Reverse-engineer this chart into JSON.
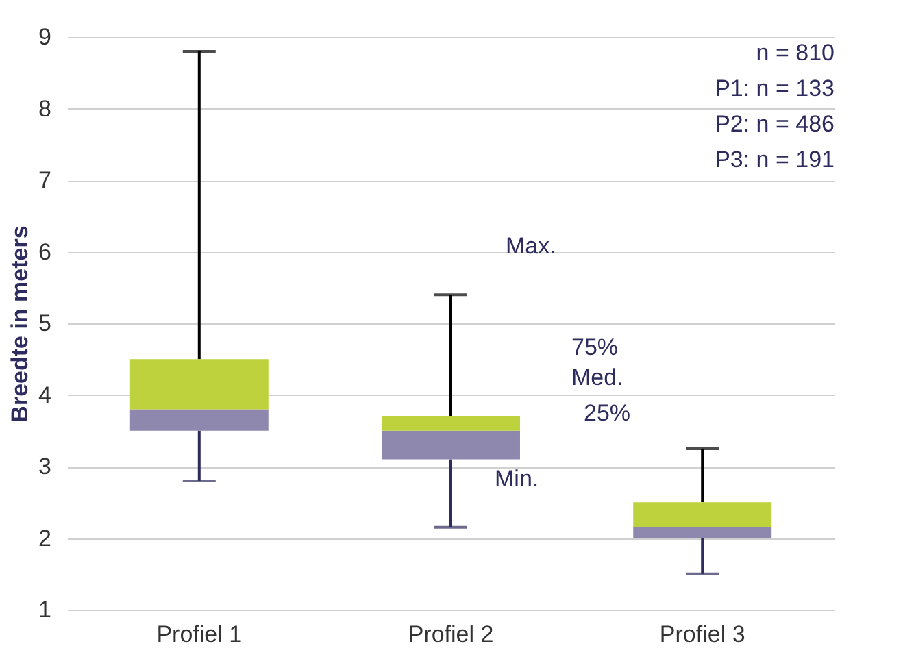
{
  "chart_data": {
    "type": "box",
    "ylabel": "Breedte in meters",
    "categories": [
      "Profiel 1",
      "Profiel 2",
      "Profiel 3"
    ],
    "series": [
      {
        "color": "#8e88ae",
        "boxes": [
          {
            "low": 2.8,
            "q1": 3.5,
            "median": 3.8,
            "q3": 4.5,
            "high": 8.8
          },
          {
            "low": 2.15,
            "q1": 3.1,
            "median": 3.5,
            "q3": 3.7,
            "high": 5.4
          },
          {
            "low": 1.5,
            "q1": 2.0,
            "median": 2.15,
            "q3": 2.5,
            "high": 3.25
          }
        ]
      }
    ],
    "ylim": [
      1,
      9
    ],
    "yticks": [
      1,
      2,
      3,
      4,
      5,
      6,
      7,
      8,
      9
    ],
    "grid": "y",
    "annotations": [
      "Max.",
      "75%",
      "Med.",
      "25%",
      "Min.",
      "n = 810",
      "P1: n = 133",
      "P2: n = 486",
      "P3: n = 191"
    ]
  }
}
